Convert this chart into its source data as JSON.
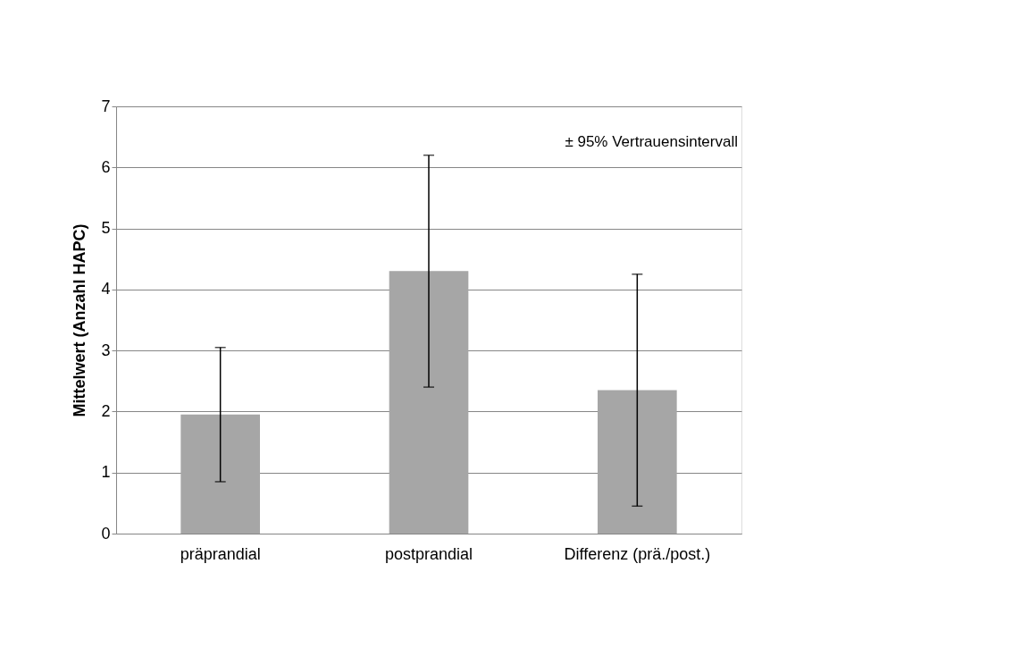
{
  "chart_data": {
    "type": "bar",
    "ylabel": "Mittelwert (Anzahl HAPC)",
    "categories": [
      "präprandial",
      "postprandial",
      "Differenz (prä./post.)"
    ],
    "values": [
      1.95,
      4.3,
      2.35
    ],
    "errors": [
      [
        0.85,
        3.05
      ],
      [
        2.4,
        6.2
      ],
      [
        0.45,
        4.25
      ]
    ],
    "color": "#a6a6a6",
    "ylim": [
      0,
      7
    ],
    "yticks": [
      0,
      1,
      2,
      3,
      4,
      5,
      6,
      7
    ],
    "grid": "y",
    "annotations": [
      "± 95% Vertrauensintervall"
    ]
  }
}
